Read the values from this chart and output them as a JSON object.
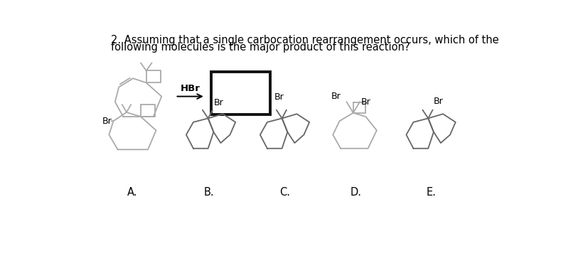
{
  "title_line1": "2. Assuming that a single carbocation rearrangement occurs, which of the",
  "title_line2": "following molecules is the major product of this reaction?",
  "title_fontsize": 10.5,
  "reagent_label": "HBr",
  "answer_labels": [
    "A.",
    "B.",
    "C.",
    "D.",
    "E."
  ],
  "bg_color": "#ffffff",
  "lc_reactant": "#aaaaaa",
  "lc_A": "#aaaaaa",
  "lc_BCD": "#666666",
  "lc_E": "#666666",
  "line_color_dark": "#111111"
}
